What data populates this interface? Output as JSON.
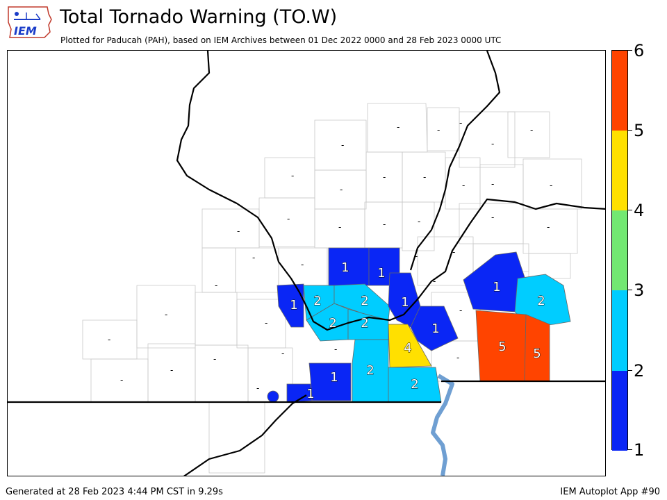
{
  "header": {
    "title": "Total Tornado Warning (TO.W)",
    "subtitle": "Plotted for Paducah (PAH), based on IEM Archives  between 01 Dec 2022 0000 and 28 Feb 2023 0000 UTC",
    "logo_text": "IEM"
  },
  "footer": {
    "generated": "Generated at 28 Feb 2023 4:44 PM CST in 9.29s",
    "app": "IEM Autoplot App #90"
  },
  "colors": {
    "c1": "#0a26f5",
    "c2": "#00cdff",
    "c3": "#72e872",
    "c4": "#ffe000",
    "c5": "#ff4400",
    "river": "#6f9fd2"
  },
  "colorbar": {
    "ticks": [
      "6",
      "5",
      "4",
      "3",
      "2",
      "1"
    ]
  },
  "map": {
    "empty_label": "-",
    "counties": [
      {
        "value": "1"
      },
      {
        "value": "1"
      },
      {
        "value": "1"
      },
      {
        "value": "2"
      },
      {
        "value": "2"
      },
      {
        "value": "1"
      },
      {
        "value": "2"
      },
      {
        "value": "2"
      },
      {
        "value": "1"
      },
      {
        "value": "4"
      },
      {
        "value": "1"
      },
      {
        "value": "1"
      },
      {
        "value": "2"
      },
      {
        "value": "2"
      },
      {
        "value": "1"
      },
      {
        "value": "2"
      },
      {
        "value": "5"
      },
      {
        "value": "5"
      }
    ]
  }
}
